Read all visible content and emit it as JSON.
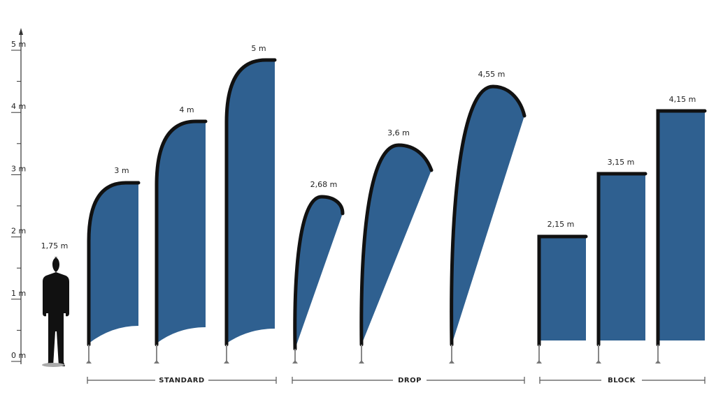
{
  "scale": {
    "ticks": [
      "0 m",
      "1 m",
      "2 m",
      "3 m",
      "4 m",
      "5 m"
    ]
  },
  "person": {
    "label": "1,75 m"
  },
  "groups": [
    {
      "name": "STANDARD",
      "flags": [
        "3 m",
        "4 m",
        "5 m"
      ]
    },
    {
      "name": "DROP",
      "flags": [
        "2,68 m",
        "3,6 m",
        "4,55 m"
      ]
    },
    {
      "name": "BLOCK",
      "flags": [
        "2,15 m",
        "3,15 m",
        "4,15 m"
      ]
    }
  ]
}
